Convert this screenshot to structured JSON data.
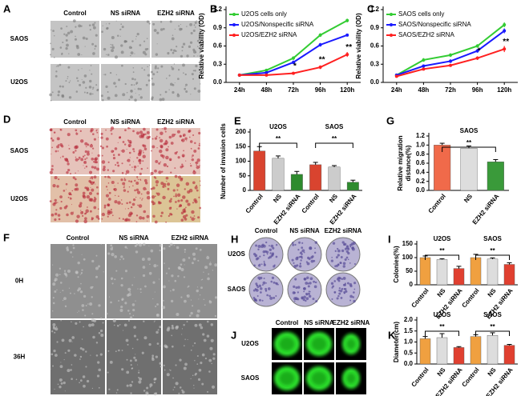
{
  "panels": {
    "A": {
      "label": "A",
      "columns": [
        "Control",
        "NS siRNA",
        "EZH2 siRNA"
      ],
      "rows": [
        "SAOS",
        "U2OS"
      ]
    },
    "D": {
      "label": "D",
      "columns": [
        "Control",
        "NS siRNA",
        "EZH2 siRNA"
      ],
      "rows": [
        "SAOS",
        "U2OS"
      ]
    },
    "F": {
      "label": "F",
      "columns": [
        "Control",
        "NS siRNA",
        "EZH2 siRNA"
      ],
      "rows": [
        "0H",
        "36H"
      ]
    },
    "H": {
      "label": "H",
      "columns": [
        "Control",
        "NS siRNA",
        "EZH2 siRNA"
      ],
      "rows": [
        "U2OS",
        "SAOS"
      ]
    },
    "J": {
      "label": "J",
      "columns": [
        "Control",
        "NS siRNA",
        "EZH2 siRNA"
      ],
      "rows": [
        "U2OS",
        "SAOS"
      ]
    }
  },
  "chart_data": [
    {
      "type": "line",
      "panel_label": "B",
      "y_label": "Relative viability (OD)",
      "categories": [
        "24h",
        "48h",
        "72h",
        "96h",
        "120h"
      ],
      "ylim": [
        0,
        1.2
      ],
      "yticks": [
        {
          "value": 0,
          "label": "0.0"
        },
        0.3,
        0.6,
        0.9,
        1.2
      ],
      "series": [
        {
          "name": "U2OS cells only",
          "color": "#33cc33",
          "values": [
            0.12,
            0.2,
            0.4,
            0.78,
            1.02
          ],
          "errors": [
            0.01,
            0.02,
            0.03,
            0.03,
            0.03
          ]
        },
        {
          "name": "U2OS/Nonspecific siRNA",
          "color": "#1a1aff",
          "values": [
            0.12,
            0.16,
            0.33,
            0.62,
            0.78
          ],
          "errors": [
            0.01,
            0.02,
            0.03,
            0.03,
            0.02
          ]
        },
        {
          "name": "U2OS/EZH2 siRNA",
          "color": "#ff2020",
          "values": [
            0.12,
            0.12,
            0.15,
            0.25,
            0.46
          ],
          "errors": [
            0.01,
            0.01,
            0.02,
            0.03,
            0.04
          ]
        }
      ],
      "annotations": [
        {
          "x": "72h",
          "text": "*"
        },
        {
          "x": "96h",
          "text": "**"
        },
        {
          "x": "120h",
          "text": "**"
        }
      ]
    },
    {
      "type": "line",
      "panel_label": "C",
      "y_label": "Relative viability (OD)",
      "categories": [
        "24h",
        "48h",
        "72h",
        "96h",
        "120h"
      ],
      "ylim": [
        0,
        1.2
      ],
      "yticks": [
        {
          "value": 0,
          "label": "0.0"
        },
        0.3,
        0.6,
        0.9,
        1.2
      ],
      "series": [
        {
          "name": "SAOS cells only",
          "color": "#33cc33",
          "values": [
            0.12,
            0.37,
            0.45,
            0.6,
            0.95
          ],
          "errors": [
            0.01,
            0.03,
            0.03,
            0.03,
            0.04
          ]
        },
        {
          "name": "SAOS/Nonspecific siRNA",
          "color": "#1a1aff",
          "values": [
            0.12,
            0.27,
            0.35,
            0.52,
            0.85
          ],
          "errors": [
            0.01,
            0.02,
            0.03,
            0.03,
            0.04
          ]
        },
        {
          "name": "SAOS/EZH2 siRNA",
          "color": "#ff2020",
          "values": [
            0.1,
            0.22,
            0.28,
            0.4,
            0.55
          ],
          "errors": [
            0.01,
            0.02,
            0.02,
            0.03,
            0.05
          ]
        }
      ],
      "annotations": [
        {
          "x": "96h",
          "text": "*"
        },
        {
          "x": "120h",
          "text": "**"
        }
      ]
    },
    {
      "type": "bar",
      "panel_label": "E",
      "y_label": "Number of invasion cells",
      "categories": [
        "Control",
        "NS",
        "EZH2 siRNA",
        "Control",
        "NS",
        "EZH2 siRNA"
      ],
      "values": [
        135,
        110,
        55,
        88,
        80,
        28
      ],
      "errors": [
        15,
        8,
        10,
        8,
        5,
        7
      ],
      "colors": [
        "#d9442f",
        "#cccccc",
        "#2e8b2e",
        "#d9442f",
        "#cccccc",
        "#2e8b2e"
      ],
      "groups": [
        "U2OS",
        "SAOS"
      ],
      "annotations": [
        "**",
        "**"
      ],
      "ylim": [
        0,
        200
      ],
      "yticks": [
        0,
        50,
        100,
        150,
        200
      ]
    },
    {
      "type": "bar",
      "panel_label": "G",
      "y_label": "Relative migration distance(%)",
      "categories": [
        "Control",
        "NS",
        "EZH2 siRNA"
      ],
      "values": [
        1.0,
        0.93,
        0.63
      ],
      "errors": [
        0.04,
        0.05,
        0.05
      ],
      "colors": [
        "#f06a4a",
        "#dddddd",
        "#3a9a3a"
      ],
      "groups": [
        "SAOS"
      ],
      "annotations": [
        "**"
      ],
      "ylim": [
        0,
        1.2
      ],
      "yticks": [
        {
          "value": 0,
          "label": "0.0"
        },
        0.2,
        0.4,
        0.6,
        0.8,
        {
          "value": 1,
          "label": "1.0"
        },
        1.2
      ]
    },
    {
      "type": "bar",
      "panel_label": "I",
      "y_label": "Colonies(%)",
      "categories": [
        "Control",
        "NS",
        "EZH2 siRNA",
        "Control",
        "NS",
        "EZH2 siRNA"
      ],
      "values": [
        100,
        93,
        60,
        100,
        95,
        75
      ],
      "errors": [
        6,
        3,
        8,
        12,
        4,
        6
      ],
      "colors": [
        "#f0a040",
        "#dddddd",
        "#e04030",
        "#f0a040",
        "#dddddd",
        "#e04030"
      ],
      "groups": [
        "U2OS",
        "SAOS"
      ],
      "annotations": [
        "**",
        "**"
      ],
      "ylim": [
        0,
        150
      ],
      "yticks": [
        0,
        50,
        100,
        150
      ]
    },
    {
      "type": "bar",
      "panel_label": "K",
      "y_label": "Diameter(cm)",
      "categories": [
        "Control",
        "NS",
        "EZH2 siRNA",
        "Control",
        "NS",
        "EZH2 siRNA"
      ],
      "values": [
        1.15,
        1.2,
        0.75,
        1.25,
        1.3,
        0.85
      ],
      "errors": [
        0.1,
        0.18,
        0.04,
        0.08,
        0.12,
        0.04
      ],
      "colors": [
        "#f0a040",
        "#dddddd",
        "#e04030",
        "#f0a040",
        "#dddddd",
        "#e04030"
      ],
      "groups": [
        "U2OS",
        "SAOS"
      ],
      "annotations": [
        "**",
        "**"
      ],
      "ylim": [
        0,
        2
      ],
      "yticks": [
        {
          "value": 0,
          "label": "0.0"
        },
        0.5,
        {
          "value": 1,
          "label": "1.0"
        },
        1.5,
        {
          "value": 2,
          "label": "2.0"
        }
      ]
    }
  ]
}
